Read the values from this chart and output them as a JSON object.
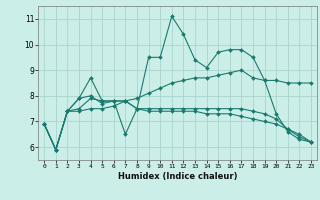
{
  "xlabel": "Humidex (Indice chaleur)",
  "xlim": [
    -0.5,
    23.5
  ],
  "ylim": [
    5.5,
    11.5
  ],
  "yticks": [
    6,
    7,
    8,
    9,
    10,
    11
  ],
  "xticks": [
    0,
    1,
    2,
    3,
    4,
    5,
    6,
    7,
    8,
    9,
    10,
    11,
    12,
    13,
    14,
    15,
    16,
    17,
    18,
    19,
    20,
    21,
    22,
    23
  ],
  "bg_color": "#cceee8",
  "grid_color": "#aad4cc",
  "line_color": "#1a7a6e",
  "series1": [
    6.9,
    5.9,
    7.4,
    7.9,
    8.7,
    7.8,
    7.8,
    6.5,
    7.5,
    9.5,
    9.5,
    11.1,
    10.4,
    9.4,
    9.1,
    9.7,
    9.8,
    9.8,
    9.5,
    8.6,
    7.3,
    6.6,
    6.3,
    6.2
  ],
  "series2": [
    6.9,
    5.9,
    7.4,
    7.9,
    8.0,
    7.7,
    7.8,
    7.8,
    7.5,
    7.5,
    7.5,
    7.5,
    7.5,
    7.5,
    7.5,
    7.5,
    7.5,
    7.5,
    7.4,
    7.3,
    7.1,
    6.7,
    6.4,
    6.2
  ],
  "series3": [
    6.9,
    5.9,
    7.4,
    7.4,
    7.5,
    7.5,
    7.6,
    7.8,
    7.5,
    7.4,
    7.4,
    7.4,
    7.4,
    7.4,
    7.3,
    7.3,
    7.3,
    7.2,
    7.1,
    7.0,
    6.9,
    6.7,
    6.5,
    6.2
  ],
  "series4": [
    6.9,
    5.9,
    7.4,
    7.5,
    7.9,
    7.8,
    7.8,
    7.8,
    7.9,
    8.1,
    8.3,
    8.5,
    8.6,
    8.7,
    8.7,
    8.8,
    8.9,
    9.0,
    8.7,
    8.6,
    8.6,
    8.5,
    8.5,
    8.5
  ]
}
